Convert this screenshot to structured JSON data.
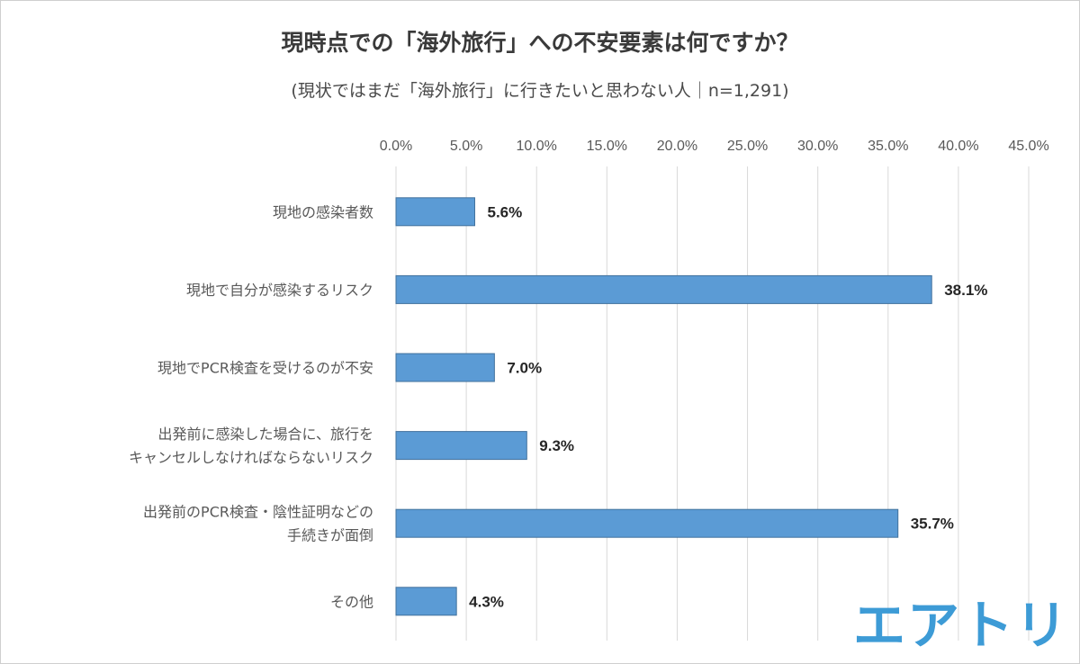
{
  "chart_data": {
    "type": "bar",
    "orientation": "horizontal",
    "title": "現時点での「海外旅行」への不安要素は何ですか？",
    "subtitle": "(現状ではまだ「海外旅行」に行きたいと思わない人｜n=1,291)",
    "categories": [
      [
        "現地の感染者数"
      ],
      [
        "現地で自分が感染するリスク"
      ],
      [
        "現地でPCR検査を受けるのが不安"
      ],
      [
        "出発前に感染した場合に、旅行を",
        "キャンセルしなければならないリスク"
      ],
      [
        "出発前のPCR検査・陰性証明などの",
        "手続きが面倒"
      ],
      [
        "その他"
      ]
    ],
    "values": [
      5.6,
      38.1,
      7.0,
      9.3,
      35.7,
      4.3
    ],
    "value_labels": [
      "5.6%",
      "38.1%",
      "7.0%",
      "9.3%",
      "35.7%",
      "4.3%"
    ],
    "xlim": [
      0,
      45
    ],
    "ticks": [
      0,
      5,
      10,
      15,
      20,
      25,
      30,
      35,
      40,
      45
    ],
    "tick_labels": [
      "0.0%",
      "5.0%",
      "10.0%",
      "15.0%",
      "20.0%",
      "25.0%",
      "30.0%",
      "35.0%",
      "40.0%",
      "45.0%"
    ],
    "xaxis_position": "top",
    "grid": true,
    "bar_color": "#5b9bd5",
    "bar_border": "#41719c",
    "grid_color": "#d9d9d9",
    "xlabel": "",
    "ylabel": ""
  },
  "logo": {
    "text": "エアトリ",
    "color": "#3d9bd6"
  }
}
